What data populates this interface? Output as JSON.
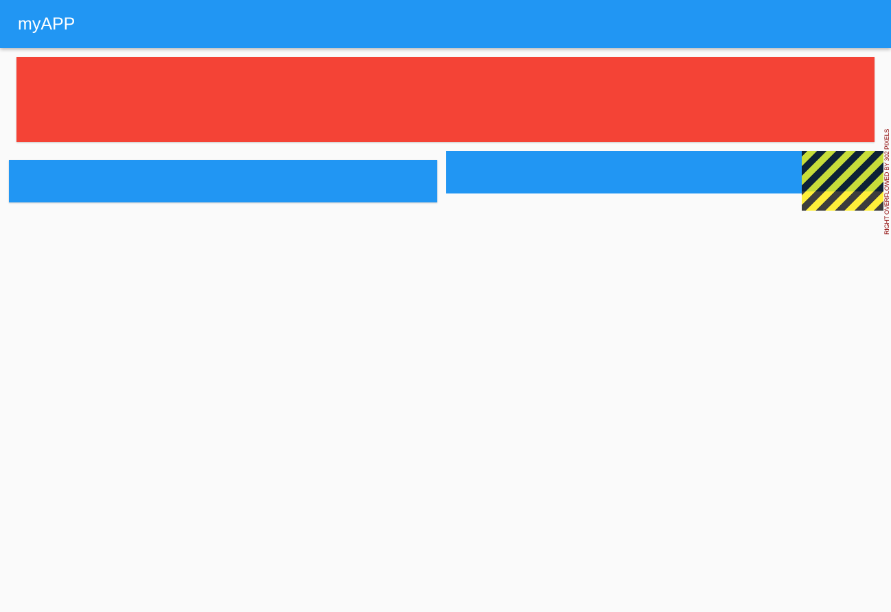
{
  "appbar": {
    "title": "myAPP",
    "color": "#2196f3"
  },
  "banner": {
    "color": "#f44336"
  },
  "cards": {
    "color": "#2196f3"
  },
  "debug_overflow": {
    "message": "RIGHT OVERFLOWED BY 302 PIXELS",
    "text_color": "#8b0000"
  }
}
